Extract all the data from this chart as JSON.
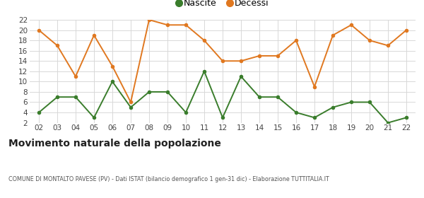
{
  "years": [
    "02",
    "03",
    "04",
    "05",
    "06",
    "07",
    "08",
    "09",
    "10",
    "11",
    "12",
    "13",
    "14",
    "15",
    "16",
    "17",
    "18",
    "19",
    "20",
    "21",
    "22"
  ],
  "nascite": [
    4,
    7,
    7,
    3,
    10,
    5,
    8,
    8,
    4,
    12,
    3,
    11,
    7,
    7,
    4,
    3,
    5,
    6,
    6,
    2,
    3
  ],
  "decessi": [
    20,
    17,
    11,
    19,
    13,
    6,
    22,
    21,
    21,
    18,
    14,
    14,
    15,
    15,
    18,
    9,
    19,
    21,
    18,
    17,
    20
  ],
  "nascite_color": "#3a7d2c",
  "decessi_color": "#e07820",
  "title": "Movimento naturale della popolazione",
  "subtitle": "COMUNE DI MONTALTO PAVESE (PV) - Dati ISTAT (bilancio demografico 1 gen-31 dic) - Elaborazione TUTTITALIA.IT",
  "ylim": [
    2,
    22
  ],
  "yticks": [
    2,
    4,
    6,
    8,
    10,
    12,
    14,
    16,
    18,
    20,
    22
  ],
  "background_color": "#ffffff",
  "grid_color": "#d8d8d8"
}
